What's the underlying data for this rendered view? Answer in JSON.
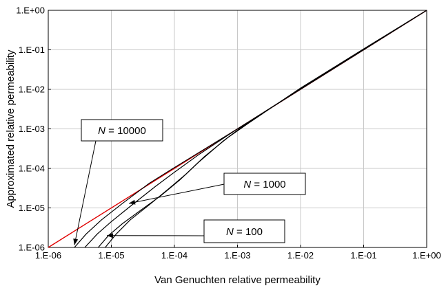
{
  "chart_data": {
    "type": "line",
    "title": "",
    "xlabel": "Van Genuchten relative permeability",
    "ylabel": "Approximated relative permeability",
    "x_scale": "log",
    "y_scale": "log",
    "xlim": [
      1e-06,
      1
    ],
    "ylim": [
      1e-06,
      1
    ],
    "grid": true,
    "x_tick_values": [
      1e-06,
      1e-05,
      0.0001,
      0.001,
      0.01,
      0.1,
      1
    ],
    "x_tick_labels": [
      "1.E-06",
      "1.E-05",
      "1.E-04",
      "1.E-03",
      "1.E-02",
      "1.E-01",
      "1.E+00"
    ],
    "y_tick_values": [
      1e-06,
      1e-05,
      0.0001,
      0.001,
      0.01,
      0.1,
      1
    ],
    "y_tick_labels": [
      "1.E-06",
      "1.E-05",
      "1.E-04",
      "1.E-03",
      "1.E-02",
      "1.E-01",
      "1.E+00"
    ],
    "series": [
      {
        "name": "",
        "color": "#e00000",
        "points": [
          [
            1e-06,
            1e-06
          ],
          [
            1,
            1
          ]
        ]
      },
      {
        "name": "",
        "color": "#000000",
        "points": [
          [
            2.6e-06,
            1e-06
          ],
          [
            4e-06,
            2.2e-06
          ],
          [
            7e-06,
            5e-06
          ],
          [
            1.5e-05,
            1.3e-05
          ],
          [
            4e-05,
            4.2e-05
          ],
          [
            0.0001,
            0.000105
          ],
          [
            0.001,
            0.001
          ],
          [
            0.01,
            0.01
          ],
          [
            0.1,
            0.1
          ],
          [
            1,
            1
          ]
        ]
      },
      {
        "name": "",
        "color": "#000000",
        "points": [
          [
            3.8e-06,
            1e-06
          ],
          [
            6e-06,
            2.2e-06
          ],
          [
            1e-05,
            4.5e-06
          ],
          [
            2e-05,
            1.1e-05
          ],
          [
            5e-05,
            3.5e-05
          ],
          [
            0.0001,
            8e-05
          ],
          [
            0.00025,
            0.00023
          ],
          [
            0.001,
            0.001
          ],
          [
            0.01,
            0.0102
          ],
          [
            0.1,
            0.1
          ],
          [
            1,
            1
          ]
        ]
      },
      {
        "name": "",
        "color": "#000000",
        "points": [
          [
            6.2e-06,
            1e-06
          ],
          [
            9e-06,
            2e-06
          ],
          [
            1.5e-05,
            4e-06
          ],
          [
            3e-05,
            9e-06
          ],
          [
            6e-05,
            2e-05
          ],
          [
            0.00012,
            5e-05
          ],
          [
            0.00025,
            0.00015
          ],
          [
            0.0006,
            0.0005
          ],
          [
            0.0012,
            0.00115
          ],
          [
            0.01,
            0.0105
          ],
          [
            0.1,
            0.105
          ],
          [
            1,
            1
          ]
        ]
      },
      {
        "name": "",
        "color": "#000000",
        "points": [
          [
            8e-06,
            1e-06
          ],
          [
            1.2e-05,
            2.2e-06
          ],
          [
            2e-05,
            5e-06
          ],
          [
            4e-05,
            1.2e-05
          ],
          [
            8e-05,
            3e-05
          ],
          [
            0.00015,
            7e-05
          ],
          [
            0.0003,
            0.0002
          ],
          [
            0.0007,
            0.0006
          ],
          [
            0.0015,
            0.0014
          ],
          [
            0.01,
            0.0108
          ],
          [
            0.1,
            0.105
          ],
          [
            1,
            1
          ]
        ]
      }
    ],
    "annotations": [
      {
        "prefix": "N",
        "text": " = 10000",
        "arrow_to": [
          2.6e-06,
          1.15e-06
        ]
      },
      {
        "prefix": "N",
        "text": " = 1000",
        "arrow_to": [
          1.9e-05,
          1.3e-05
        ]
      },
      {
        "prefix": "N",
        "text": " = 100",
        "arrow_to": [
          8.5e-06,
          2e-06
        ]
      }
    ]
  }
}
